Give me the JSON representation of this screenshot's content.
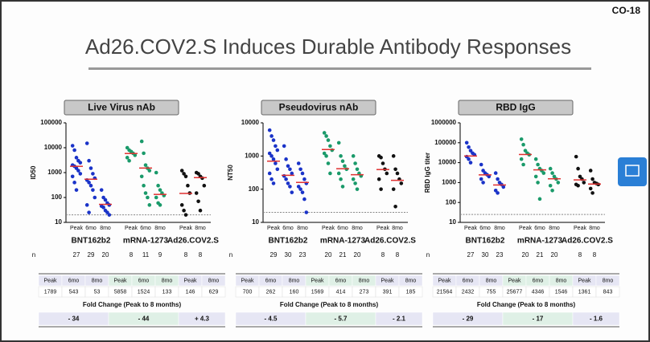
{
  "header": {
    "slide_id": "CO-18",
    "title": "Ad26.COV2.S Induces Durable Antibody Responses"
  },
  "chart_data": [
    {
      "type": "strip",
      "title": "Live Virus nAb",
      "y_label": "ID50",
      "log_scale": true,
      "ylim": [
        10,
        100000
      ],
      "yticks": [
        10,
        100,
        1000,
        10000,
        100000
      ],
      "lloq": 20,
      "n_label": "n",
      "groups": [
        {
          "name": "BNT162b2",
          "color": "#1a33c8",
          "timepoints": [
            "Peak",
            "6mo",
            "8mo"
          ],
          "n": [
            27,
            29,
            20
          ],
          "points": [
            [
              12000,
              8000,
              4000,
              3000,
              2500,
              2000,
              1800,
              1500,
              1200,
              900,
              700,
              400,
              200
            ],
            [
              15000,
              3000,
              1500,
              900,
              600,
              500,
              400,
              300,
              200,
              100,
              50,
              25
            ],
            [
              200,
              100,
              80,
              60,
              50,
              45,
              40,
              30,
              25,
              20
            ]
          ]
        },
        {
          "name": "mRNA-1273",
          "color": "#1a9a6a",
          "timepoints": [
            "Peak",
            "6mo",
            "8mo"
          ],
          "n": [
            8,
            11,
            9
          ],
          "points": [
            [
              10000,
              8000,
              7000,
              6000,
              5000,
              4000,
              3000
            ],
            [
              18000,
              6000,
              2000,
              1500,
              1200,
              700,
              300,
              150,
              100,
              50
            ],
            [
              1000,
              300,
              200,
              150,
              120,
              100,
              60,
              50
            ]
          ]
        },
        {
          "name": "Ad26.COV2.S",
          "color": "#111111",
          "timepoints": [
            "Peak",
            "8mo"
          ],
          "n": [
            8,
            8
          ],
          "points": [
            [
              1200,
              900,
              700,
              300,
              150,
              50,
              30,
              20
            ],
            [
              1000,
              900,
              700,
              600,
              300,
              150,
              70,
              30
            ]
          ]
        }
      ],
      "table": {
        "values": [
          1789,
          543,
          53,
          5858,
          1524,
          133,
          146,
          629
        ],
        "fold_change_label": "Fold Change (Peak to 8 months)",
        "fold_changes": [
          "- 34",
          "- 44",
          "+ 4.3"
        ]
      }
    },
    {
      "type": "strip",
      "title": "Pseudovirus nAb",
      "y_label": "NT50",
      "log_scale": true,
      "ylim": [
        10,
        10000
      ],
      "yticks": [
        10,
        100,
        1000,
        10000
      ],
      "lloq": 20,
      "n_label": "n",
      "groups": [
        {
          "name": "BNT162b2",
          "color": "#1a33c8",
          "timepoints": [
            "Peak",
            "6mo",
            "8mo"
          ],
          "n": [
            29,
            30,
            23
          ],
          "points": [
            [
              6000,
              4000,
              3000,
              2000,
              1500,
              1200,
              1000,
              800,
              600,
              400,
              300,
              200,
              150
            ],
            [
              2000,
              800,
              500,
              400,
              300,
              250,
              200,
              150,
              120,
              80
            ],
            [
              600,
              400,
              300,
              200,
              150,
              120,
              100,
              80,
              50,
              20
            ]
          ]
        },
        {
          "name": "mRNA-1273",
          "color": "#1a9a6a",
          "timepoints": [
            "Peak",
            "6mo",
            "8mo"
          ],
          "n": [
            20,
            21,
            20
          ],
          "points": [
            [
              5000,
              4000,
              3000,
              2000,
              1500,
              1200,
              1000,
              600,
              300
            ],
            [
              2500,
              1000,
              700,
              500,
              400,
              300,
              200,
              120
            ],
            [
              1000,
              600,
              400,
              300,
              250,
              200,
              150,
              100
            ]
          ]
        },
        {
          "name": "Ad26.COV2.S",
          "color": "#111111",
          "timepoints": [
            "Peak",
            "8mo"
          ],
          "n": [
            8,
            8
          ],
          "points": [
            [
              1000,
              900,
              600,
              400,
              300,
              200,
              100
            ],
            [
              1000,
              400,
              300,
              200,
              150,
              100,
              30
            ]
          ]
        }
      ],
      "table": {
        "values": [
          700,
          262,
          160,
          1569,
          414,
          273,
          391,
          185
        ],
        "fold_change_label": "Fold Change (Peak to 8 months)",
        "fold_changes": [
          "- 4.5",
          "- 5.7",
          "- 2.1"
        ]
      }
    },
    {
      "type": "strip",
      "title": "RBD IgG",
      "y_label": "RBD IgG titer",
      "log_scale": true,
      "ylim": [
        10,
        1000000
      ],
      "yticks": [
        10,
        100,
        1000,
        10000,
        100000,
        1000000
      ],
      "lloq": 25,
      "n_label": "n",
      "groups": [
        {
          "name": "BNT162b2",
          "color": "#1a33c8",
          "timepoints": [
            "Peak",
            "6mo",
            "8mo"
          ],
          "n": [
            27,
            30,
            23
          ],
          "points": [
            [
              100000,
              60000,
              40000,
              30000,
              25000,
              20000,
              15000,
              10000
            ],
            [
              8000,
              4000,
              3000,
              2500,
              2000,
              1500,
              1000
            ],
            [
              3000,
              1500,
              1000,
              800,
              600,
              400,
              300
            ]
          ]
        },
        {
          "name": "mRNA-1273",
          "color": "#1a9a6a",
          "timepoints": [
            "Peak",
            "6mo",
            "8mo"
          ],
          "n": [
            20,
            21,
            20
          ],
          "points": [
            [
              150000,
              80000,
              40000,
              30000,
              25000,
              15000,
              8000
            ],
            [
              15000,
              8000,
              5000,
              4000,
              3000,
              2000,
              1000,
              150
            ],
            [
              5000,
              3000,
              2000,
              1500,
              1000,
              700,
              400
            ]
          ]
        },
        {
          "name": "Ad26.COV2.S",
          "color": "#111111",
          "timepoints": [
            "Peak",
            "8mo"
          ],
          "n": [
            8,
            8
          ],
          "points": [
            [
              20000,
              5000,
              2000,
              1500,
              1000,
              800,
              700
            ],
            [
              4000,
              1500,
              1000,
              900,
              800,
              500,
              300
            ]
          ]
        }
      ],
      "table": {
        "values": [
          21564,
          2432,
          755,
          25677,
          4346,
          1546,
          1361,
          843
        ],
        "fold_change_label": "Fold Change (Peak to 8 months)",
        "fold_changes": [
          "- 29",
          "- 17",
          "- 1.6"
        ]
      }
    }
  ]
}
